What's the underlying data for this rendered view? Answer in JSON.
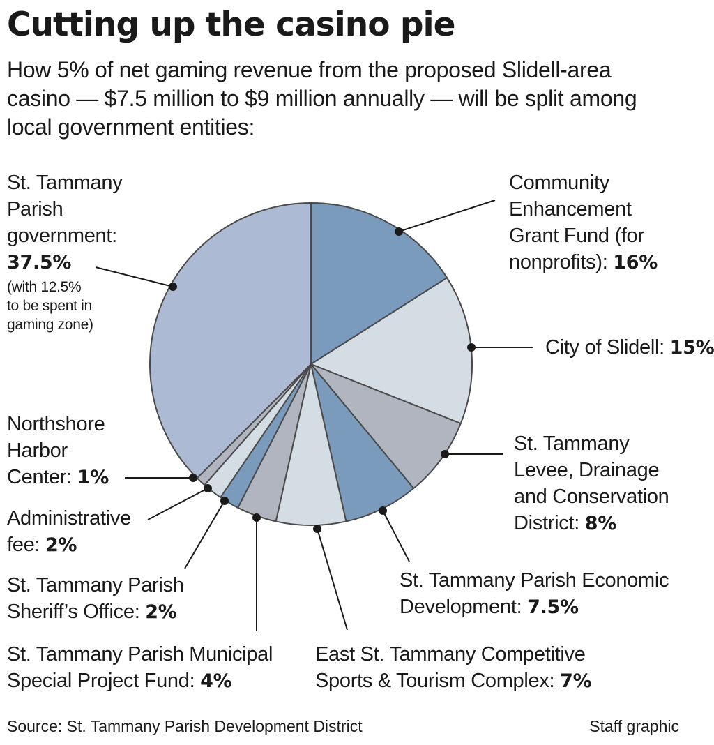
{
  "header": {
    "title": "Cutting up the casino pie",
    "subtitle": "How 5% of net gaming revenue from the proposed Slidell-area casino — $7.5 million to $9 million annually — will be split among local government entities:"
  },
  "footer": {
    "source": "Source: St. Tammany Parish Development District",
    "credit": "Staff graphic"
  },
  "chart_data": {
    "type": "pie",
    "title": "Cutting up the casino pie",
    "slices": [
      {
        "label_lines": [
          "Community",
          "Enhancement",
          "Grant Fund (for",
          "nonprofits):"
        ],
        "value_text": "16%",
        "value": 16,
        "color": "#7b9bbd"
      },
      {
        "label_lines": [
          "City of Slidell:"
        ],
        "value_text": "15%",
        "value": 15,
        "color": "#d5dde4"
      },
      {
        "label_lines": [
          "St. Tammany",
          "Levee, Drainage",
          "and Conservation",
          "District:"
        ],
        "value_text": "8%",
        "value": 8,
        "color": "#b1b5bf"
      },
      {
        "label_lines": [
          "St. Tammany Parish Economic",
          "Development:"
        ],
        "value_text": "7.5%",
        "value": 7.5,
        "color": "#7b9bbd"
      },
      {
        "label_lines": [
          "East St. Tammany Competitive",
          "Sports & Tourism Complex:"
        ],
        "value_text": "7%",
        "value": 7,
        "color": "#d5dde4"
      },
      {
        "label_lines": [
          "St. Tammany Parish Municipal",
          "Special Project Fund:"
        ],
        "value_text": "4%",
        "value": 4,
        "color": "#b1b5bf"
      },
      {
        "label_lines": [
          "St. Tammany Parish",
          "Sheriff’s Office:"
        ],
        "value_text": "2%",
        "value": 2,
        "color": "#7b9bbd"
      },
      {
        "label_lines": [
          "Administrative",
          "fee:"
        ],
        "value_text": "2%",
        "value": 2,
        "color": "#d5dde4"
      },
      {
        "label_lines": [
          "Northshore",
          "Harbor",
          "Center:"
        ],
        "value_text": "1%",
        "value": 1,
        "color": "#b1b5bf"
      },
      {
        "label_lines": [
          "St. Tammany",
          "Parish",
          "government:"
        ],
        "value_text": "37.5%",
        "value": 37.5,
        "color": "#adbad3",
        "note_lines": [
          "(with 12.5%",
          "to be spent in",
          "gaming zone)"
        ]
      }
    ],
    "start_angle_deg": 0,
    "direction": "clockwise",
    "legend": "none"
  }
}
